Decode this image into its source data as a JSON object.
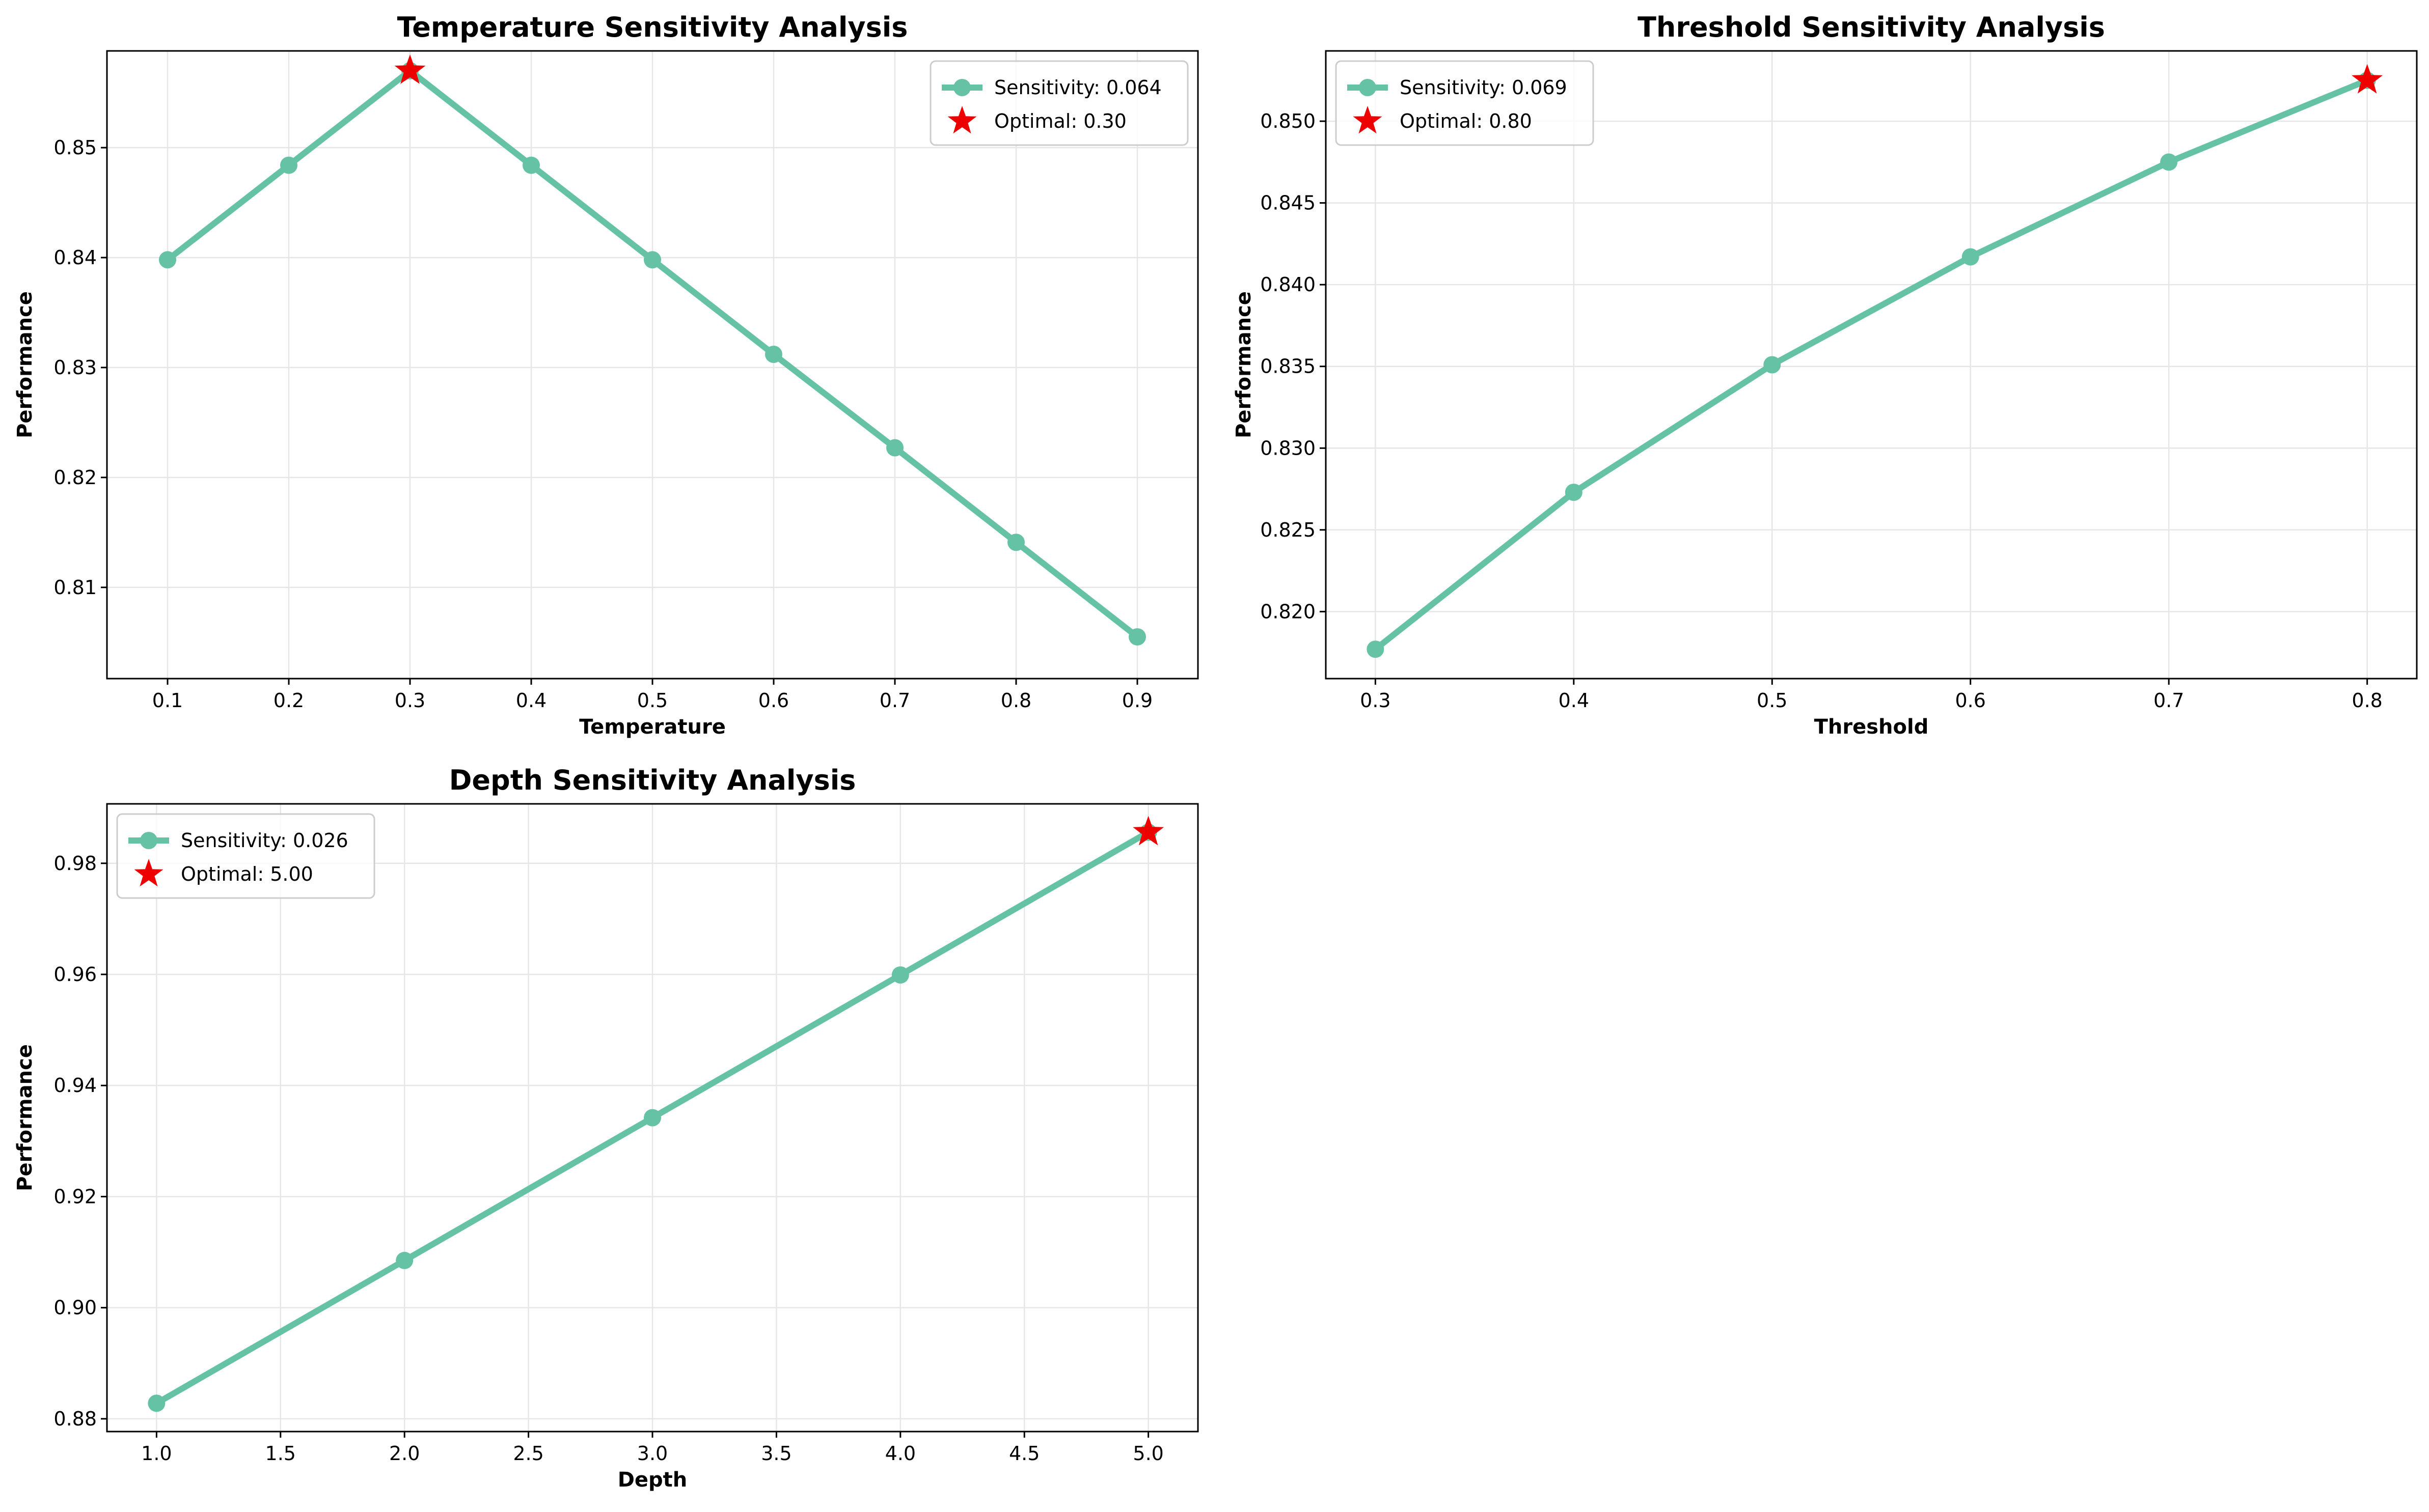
{
  "colors": {
    "line": "#66c2a5",
    "optimal": "#ee0000",
    "grid": "#e6e6e6"
  },
  "chart_data": [
    {
      "type": "line",
      "title": "Temperature Sensitivity Analysis",
      "xlabel": "Temperature",
      "ylabel": "Performance",
      "x": [
        0.1,
        0.2,
        0.3,
        0.4,
        0.5,
        0.6,
        0.7,
        0.8,
        0.9
      ],
      "y": [
        0.8398,
        0.8484,
        0.857,
        0.8484,
        0.8398,
        0.8312,
        0.8227,
        0.8141,
        0.8055
      ],
      "xlim": [
        0.05,
        0.95
      ],
      "ylim": [
        0.8017,
        0.8588
      ],
      "xticks": [
        "0.1",
        "0.2",
        "0.3",
        "0.4",
        "0.5",
        "0.6",
        "0.7",
        "0.8",
        "0.9"
      ],
      "xtick_values": [
        0.1,
        0.2,
        0.3,
        0.4,
        0.5,
        0.6,
        0.7,
        0.8,
        0.9
      ],
      "yticks": [
        "0.81",
        "0.82",
        "0.83",
        "0.84",
        "0.85"
      ],
      "ytick_values": [
        0.81,
        0.82,
        0.83,
        0.84,
        0.85
      ],
      "optimal": {
        "x": 0.3,
        "y": 0.857
      },
      "legend": {
        "position": "top-right",
        "line_label": "Sensitivity: 0.064",
        "optimal_label": "Optimal: 0.30"
      },
      "grid": true
    },
    {
      "type": "line",
      "title": "Threshold Sensitivity Analysis",
      "xlabel": "Threshold",
      "ylabel": "Performance",
      "x": [
        0.3,
        0.4,
        0.5,
        0.6,
        0.7,
        0.8
      ],
      "y": [
        0.8177,
        0.8273,
        0.8351,
        0.8417,
        0.8475,
        0.8525
      ],
      "xlim": [
        0.275,
        0.825
      ],
      "ylim": [
        0.8159,
        0.8543
      ],
      "xticks": [
        "0.3",
        "0.4",
        "0.5",
        "0.6",
        "0.7",
        "0.8"
      ],
      "xtick_values": [
        0.3,
        0.4,
        0.5,
        0.6,
        0.7,
        0.8
      ],
      "yticks": [
        "0.820",
        "0.825",
        "0.830",
        "0.835",
        "0.840",
        "0.845",
        "0.850"
      ],
      "ytick_values": [
        0.82,
        0.825,
        0.83,
        0.835,
        0.84,
        0.845,
        0.85
      ],
      "optimal": {
        "x": 0.8,
        "y": 0.8525
      },
      "legend": {
        "position": "top-left",
        "line_label": "Sensitivity: 0.069",
        "optimal_label": "Optimal: 0.80"
      },
      "grid": true
    },
    {
      "type": "line",
      "title": "Depth Sensitivity Analysis",
      "xlabel": "Depth",
      "ylabel": "Performance",
      "x": [
        1.0,
        2.0,
        3.0,
        4.0,
        5.0
      ],
      "y": [
        0.8828,
        0.9085,
        0.9342,
        0.9599,
        0.9856
      ],
      "xlim": [
        0.8,
        5.2
      ],
      "ylim": [
        0.8777,
        0.9907
      ],
      "xticks": [
        "1.0",
        "1.5",
        "2.0",
        "2.5",
        "3.0",
        "3.5",
        "4.0",
        "4.5",
        "5.0"
      ],
      "xtick_values": [
        1.0,
        1.5,
        2.0,
        2.5,
        3.0,
        3.5,
        4.0,
        4.5,
        5.0
      ],
      "yticks": [
        "0.88",
        "0.90",
        "0.92",
        "0.94",
        "0.96",
        "0.98"
      ],
      "ytick_values": [
        0.88,
        0.9,
        0.92,
        0.94,
        0.96,
        0.98
      ],
      "optimal": {
        "x": 5.0,
        "y": 0.9856
      },
      "legend": {
        "position": "top-left",
        "line_label": "Sensitivity: 0.026",
        "optimal_label": "Optimal: 5.00"
      },
      "grid": true
    }
  ]
}
